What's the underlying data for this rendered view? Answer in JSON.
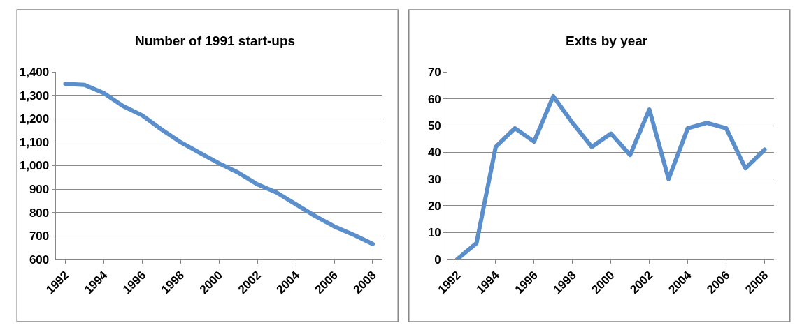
{
  "chart_data": [
    {
      "type": "line",
      "title": "Number of 1991 start-ups",
      "categories": [
        "1992",
        null,
        "1994",
        null,
        "1996",
        null,
        "1998",
        null,
        "2000",
        null,
        "2002",
        null,
        "2004",
        null,
        "2006",
        null,
        "2008"
      ],
      "series": [
        {
          "color": "#5b8fcc",
          "values": [
            1350,
            1345,
            1310,
            1255,
            1215,
            1155,
            1100,
            1055,
            1010,
            970,
            920,
            885,
            835,
            785,
            740,
            705,
            665
          ]
        }
      ],
      "ylim": [
        600,
        1400
      ],
      "yticks": [
        {
          "value": 600,
          "label": "600"
        },
        {
          "value": 700,
          "label": "700"
        },
        {
          "value": 800,
          "label": "800"
        },
        {
          "value": 900,
          "label": "900"
        },
        {
          "value": 1000,
          "label": "1,000"
        },
        {
          "value": 1100,
          "label": "1,100"
        },
        {
          "value": 1200,
          "label": "1,200"
        },
        {
          "value": 1300,
          "label": "1,300"
        },
        {
          "value": 1400,
          "label": "1,400"
        }
      ],
      "grid": "y",
      "marker": "none",
      "line_style": "solid"
    },
    {
      "type": "line",
      "title": "Exits by year",
      "categories": [
        "1992",
        null,
        "1994",
        null,
        "1996",
        null,
        "1998",
        null,
        "2000",
        null,
        "2002",
        null,
        "2004",
        null,
        "2006",
        null,
        "2008"
      ],
      "series": [
        {
          "color": "#5b8fcc",
          "values": [
            0,
            6,
            42,
            49,
            44,
            61,
            51,
            42,
            47,
            39,
            56,
            30,
            49,
            51,
            49,
            34,
            41
          ]
        }
      ],
      "ylim": [
        0,
        70
      ],
      "yticks": [
        0,
        10,
        20,
        30,
        40,
        50,
        60,
        70
      ],
      "grid": "y",
      "marker": "none",
      "line_style": "solid"
    }
  ]
}
